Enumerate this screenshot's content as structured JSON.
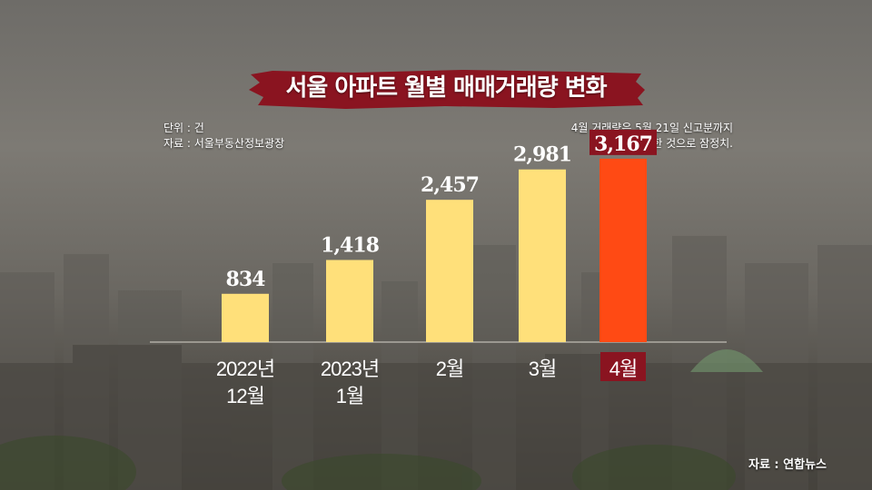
{
  "title": "서울 아파트 월별 매매거래량 변화",
  "notes": {
    "unit": "단위 : 건",
    "source": "자료 : 서울부동산정보광장",
    "data_note_line1": "4월 거래량은 5월 21일 신고분까지",
    "data_note_line2": "집계한 것으로 잠정치."
  },
  "credit": "자료 : 연합뉴스",
  "colors": {
    "bar": "#ffe07a",
    "bar_highlight": "#ff4a14",
    "label_highlight_bg": "#8a1420",
    "title_brush": "#8a1420",
    "baseline": "#d8d4cc"
  },
  "chart_data": {
    "type": "bar",
    "categories": [
      [
        "2022년",
        "12월"
      ],
      [
        "2023년",
        "1월"
      ],
      [
        "2월"
      ],
      [
        "3월"
      ],
      [
        "4월"
      ]
    ],
    "values": [
      834,
      1418,
      2457,
      2981,
      3167
    ],
    "value_labels": [
      "834",
      "1,418",
      "2,457",
      "2,981",
      "3,167"
    ],
    "highlight_index": 4,
    "title": "서울 아파트 월별 매매거래량 변화",
    "xlabel": "",
    "ylabel": "",
    "ylim": [
      0,
      3400
    ],
    "grid": false,
    "legend": "none"
  }
}
